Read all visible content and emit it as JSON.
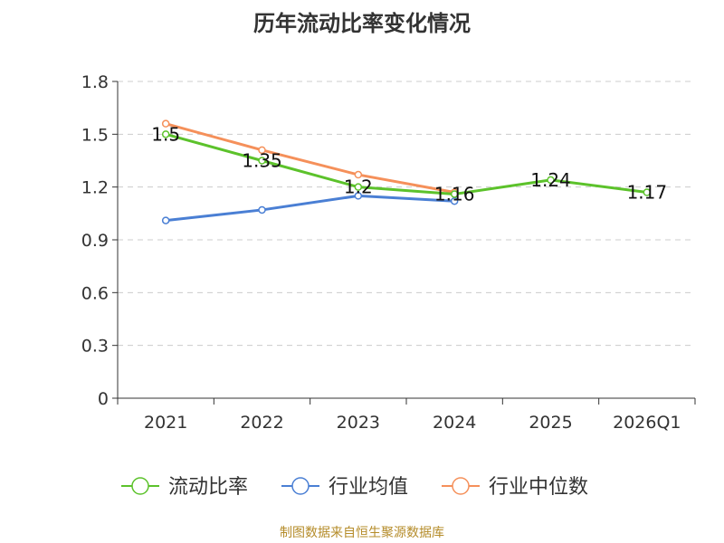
{
  "chart_data": {
    "type": "line",
    "title": "历年流动比率变化情况",
    "categories": [
      "2021",
      "2022",
      "2023",
      "2024",
      "2025",
      "2026Q1"
    ],
    "ylim": [
      0,
      1.8
    ],
    "yticks": [
      "0",
      "0.3",
      "0.6",
      "0.9",
      "1.2",
      "1.5",
      "1.8"
    ],
    "grid": true,
    "legend_position": "bottom",
    "series": [
      {
        "name": "流动比率",
        "color": "#5cc22b",
        "values": [
          1.5,
          1.35,
          1.2,
          1.16,
          1.24,
          1.17
        ],
        "labels": [
          "1.5",
          "1.35",
          "1.2",
          "1.16",
          "1.24",
          "1.17"
        ]
      },
      {
        "name": "行业均值",
        "color": "#4a7fd4",
        "values": [
          1.01,
          1.07,
          1.15,
          1.12,
          null,
          null
        ]
      },
      {
        "name": "行业中位数",
        "color": "#f5905a",
        "values": [
          1.56,
          1.41,
          1.27,
          1.17,
          null,
          null
        ]
      }
    ],
    "source": "制图数据来自恒生聚源数据库"
  }
}
